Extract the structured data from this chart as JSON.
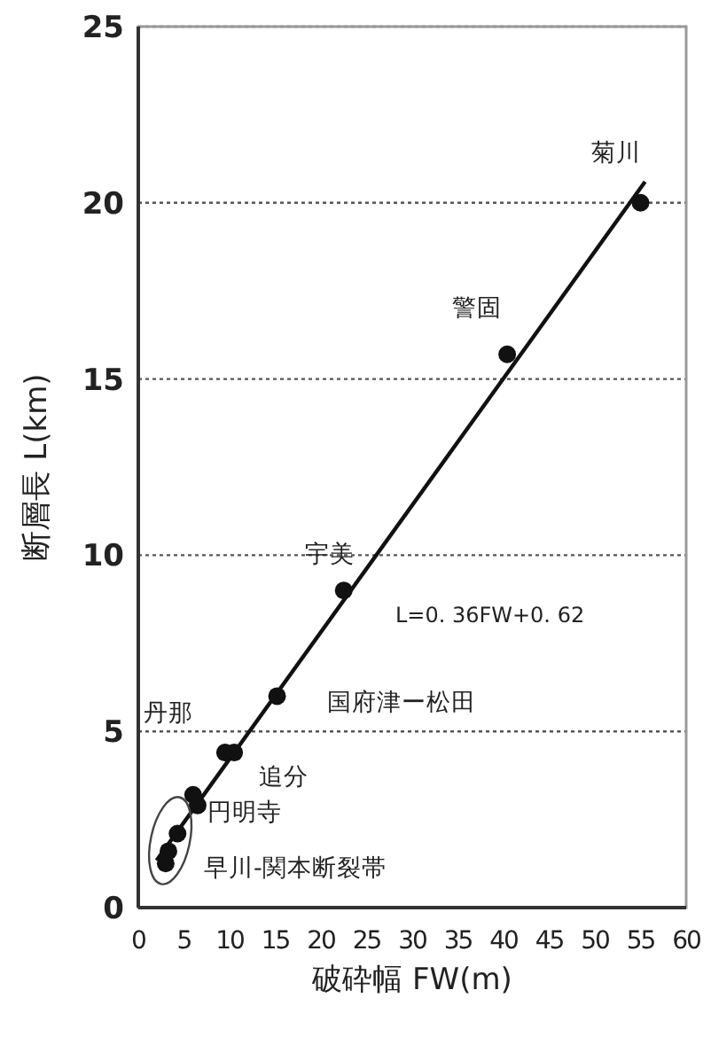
{
  "chart_data": {
    "type": "scatter",
    "xlabel": "破砕幅 FW(m)",
    "ylabel": "断層長 L(km)",
    "xlim": [
      0,
      60
    ],
    "ylim": [
      0,
      25
    ],
    "xticks": [
      0,
      5,
      10,
      15,
      20,
      25,
      30,
      35,
      40,
      45,
      50,
      55,
      60
    ],
    "yticks": [
      0,
      5,
      10,
      15,
      20,
      25
    ],
    "grid": "y",
    "series": [
      {
        "marker": "circle",
        "color": "#111111",
        "x": [
          3,
          3.3,
          4.3,
          6,
          6.5,
          9.5,
          10.5,
          15.2,
          22.5,
          40.4,
          55
        ],
        "values": [
          1.25,
          1.6,
          2.1,
          3.2,
          2.9,
          4.4,
          4.4,
          6,
          9,
          15.7,
          20
        ]
      },
      {
        "type": "line",
        "marker": "none",
        "color": "#111111",
        "x": [
          2,
          55.5
        ],
        "values": [
          1.34,
          20.6
        ]
      }
    ],
    "annotations": [
      {
        "text": "菊川",
        "x": 55,
        "y": 20
      },
      {
        "text": "警固",
        "x": 40.4,
        "y": 15.7
      },
      {
        "text": "宇美",
        "x": 22.5,
        "y": 9
      },
      {
        "text": "国府津ー松田",
        "x": 15.2,
        "y": 6
      },
      {
        "text": "丹那",
        "x": 9.5,
        "y": 4.4
      },
      {
        "text": "追分",
        "x": 10.5,
        "y": 4.4
      },
      {
        "text": "円明寺",
        "x": 6,
        "y": 3.2
      },
      {
        "text": "早川-関本断裂帯",
        "x": 3.3,
        "y": 1.6
      },
      "L=0. 36FW+0. 62"
    ]
  }
}
